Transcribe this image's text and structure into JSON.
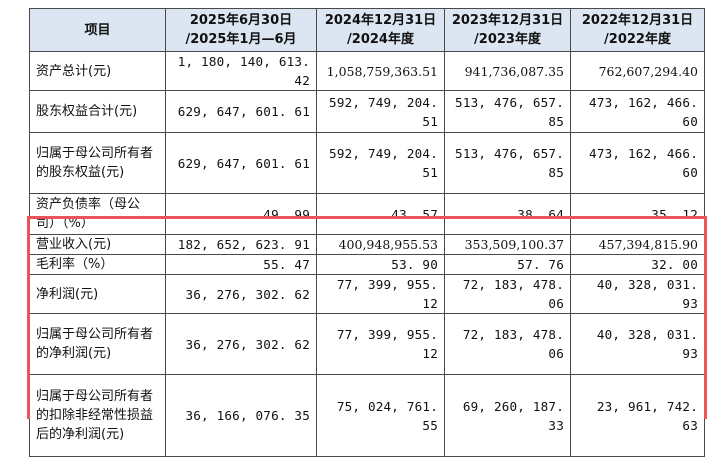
{
  "header": {
    "item": "项目",
    "col1_line1": "2025年6月30日",
    "col1_line2": "/2025年1月—6月",
    "col2_line1": "2024年12月31日",
    "col2_line2": "/2024年度",
    "col3_line1": "2023年12月31日",
    "col3_line2": "/2023年度",
    "col4_line1": "2022年12月31日",
    "col4_line2": "/2022年度"
  },
  "rows": [
    {
      "label": "资产总计(元)",
      "values": [
        "1, 180, 140, 613. 42",
        "1,058,759,363.51",
        "941,736,087.35",
        "762,607,294.40"
      ]
    },
    {
      "label": "股东权益合计(元)",
      "values": [
        "629, 647, 601. 61",
        "592, 749, 204. 51",
        "513, 476, 657. 85",
        "473, 162, 466. 60"
      ]
    },
    {
      "label": "归属于母公司所有者的股东权益(元)",
      "values": [
        "629, 647, 601. 61",
        "592, 749, 204. 51",
        "513, 476, 657. 85",
        "473, 162, 466. 60"
      ]
    },
    {
      "label": "资产负债率（母公司）（%）",
      "values": [
        "49. 99",
        "43. 57",
        "38. 64",
        "35. 12"
      ]
    },
    {
      "label": "营业收入(元)",
      "values": [
        "182, 652, 623. 91",
        "400,948,955.53",
        "353,509,100.37",
        "457,394,815.90"
      ]
    },
    {
      "label": "毛利率（%）",
      "values": [
        "55. 47",
        "53. 90",
        "57. 76",
        "32. 00"
      ]
    },
    {
      "label": "净利润(元)",
      "values": [
        "36, 276, 302. 62",
        "77, 399, 955. 12",
        "72, 183, 478. 06",
        "40, 328, 031. 93"
      ]
    },
    {
      "label": "归属于母公司所有者的净利润(元)",
      "values": [
        "36, 276, 302. 62",
        "77, 399, 955. 12",
        "72, 183, 478. 06",
        "40, 328, 031. 93"
      ]
    },
    {
      "label": "归属于母公司所有者的扣除非经常性损益后的净利润(元)",
      "values": [
        "36, 166, 076. 35",
        "75, 024, 761. 55",
        "69, 260, 187. 33",
        "23, 961, 742. 63"
      ]
    }
  ],
  "colors": {
    "header_bg": "#dce6f2",
    "highlight_border": "#e8545a",
    "grid": "#4a4a4a"
  }
}
